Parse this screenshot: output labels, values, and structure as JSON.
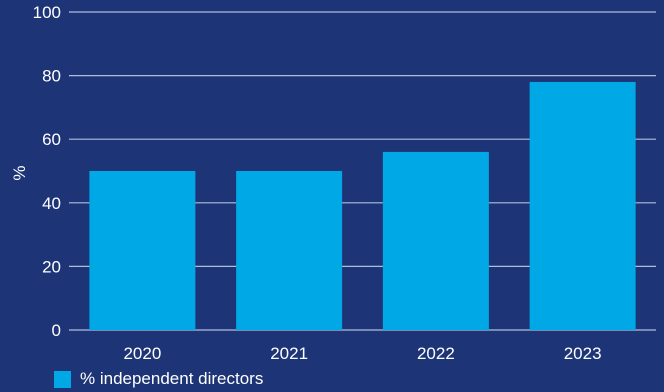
{
  "colors": {
    "background": "#1d3577",
    "bar": "#00a9e6",
    "grid": "#aebedd",
    "text": "#ffffff"
  },
  "chart_data": {
    "type": "bar",
    "title": "",
    "xlabel": "",
    "ylabel": "%",
    "categories": [
      "2020",
      "2021",
      "2022",
      "2023"
    ],
    "series": [
      {
        "name": "% independent directors",
        "values": [
          50,
          50,
          56,
          78
        ]
      }
    ],
    "ylim": [
      0,
      100
    ],
    "yticks": [
      0,
      20,
      40,
      60,
      80,
      100
    ],
    "grid": true,
    "legend": "bottom-left"
  }
}
